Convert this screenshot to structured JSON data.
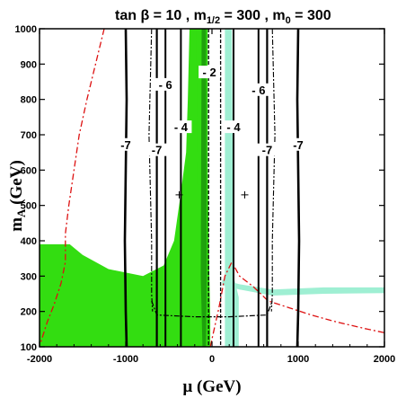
{
  "chart_data": {
    "type": "contour",
    "title": "tan β = 10 ,  m1/2 = 300 ,  m0 = 300",
    "title_parts": {
      "tan": "tan β = 10 ,  m",
      "sub": "1/2",
      "rest": " = 300 ,  m",
      "sub0": "0",
      "tail": " = 300"
    },
    "xlabel": "μ (GeV)",
    "ylabel": "m",
    "ylabel_sub": "A",
    "ylabel_unit": " (GeV)",
    "xlim": [
      -2000,
      2000
    ],
    "ylim": [
      100,
      1000
    ],
    "x_ticks": [
      "-2000",
      "-1000",
      "0",
      "1000",
      "2000"
    ],
    "x_tick_values": [
      -2000,
      -1000,
      0,
      1000,
      2000
    ],
    "y_ticks": [
      "100",
      "200",
      "300",
      "400",
      "500",
      "600",
      "700",
      "800",
      "900",
      "1000"
    ],
    "y_tick_values": [
      100,
      200,
      300,
      400,
      500,
      600,
      700,
      800,
      900,
      1000
    ],
    "contour_labels": [
      {
        "text": "-7",
        "x": -1000,
        "y": 665
      },
      {
        "text": "-7",
        "x": -640,
        "y": 650
      },
      {
        "text": "- 6",
        "x": -540,
        "y": 835
      },
      {
        "text": "- 4",
        "x": -360,
        "y": 715
      },
      {
        "text": "- 2",
        "x": -30,
        "y": 870
      },
      {
        "text": "- 4",
        "x": 250,
        "y": 715
      },
      {
        "text": "- 6",
        "x": 540,
        "y": 820
      },
      {
        "text": "-7",
        "x": 640,
        "y": 650
      },
      {
        "text": "-7",
        "x": 1000,
        "y": 665
      }
    ],
    "markers": [
      {
        "x": -380,
        "y": 530
      },
      {
        "x": 380,
        "y": 530
      }
    ],
    "colors": {
      "green_region": "#33dd11",
      "light_band": "#9fefd3",
      "red_boundary": "#dd1111",
      "contours": "#000000"
    }
  }
}
